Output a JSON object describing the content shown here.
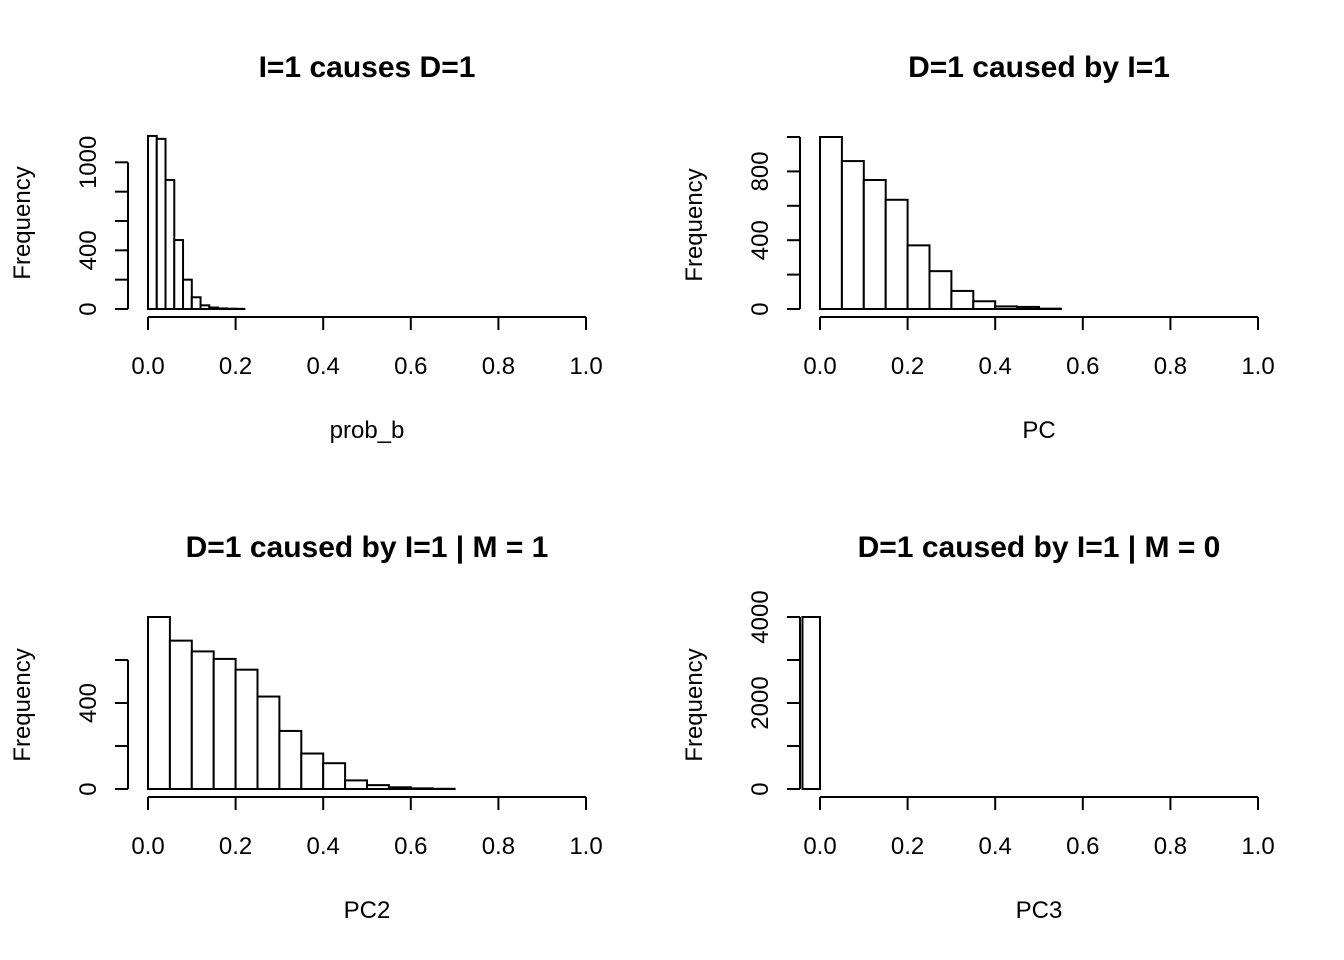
{
  "chart_data": [
    {
      "type": "bar",
      "title": "I=1 causes D=1",
      "xlabel": "prob_b",
      "ylabel": "Frequency",
      "xlim": [
        0,
        1
      ],
      "ylim": [
        0,
        1200
      ],
      "xticks": [
        "0.0",
        "0.2",
        "0.4",
        "0.6",
        "0.8",
        "1.0"
      ],
      "yticks": [
        "0",
        "400",
        "1000"
      ],
      "yminor": [
        200,
        600,
        800
      ],
      "bins": [
        {
          "x0": 0.0,
          "x1": 0.02,
          "count": 1180
        },
        {
          "x0": 0.02,
          "x1": 0.04,
          "count": 1160
        },
        {
          "x0": 0.04,
          "x1": 0.06,
          "count": 880
        },
        {
          "x0": 0.06,
          "x1": 0.08,
          "count": 470
        },
        {
          "x0": 0.08,
          "x1": 0.1,
          "count": 200
        },
        {
          "x0": 0.1,
          "x1": 0.12,
          "count": 80
        },
        {
          "x0": 0.12,
          "x1": 0.14,
          "count": 25
        },
        {
          "x0": 0.14,
          "x1": 0.16,
          "count": 10
        },
        {
          "x0": 0.16,
          "x1": 0.18,
          "count": 4
        },
        {
          "x0": 0.18,
          "x1": 0.2,
          "count": 2
        },
        {
          "x0": 0.2,
          "x1": 0.22,
          "count": 1
        }
      ]
    },
    {
      "type": "bar",
      "title": "D=1 caused by I=1",
      "xlabel": "PC",
      "ylabel": "Frequency",
      "xlim": [
        0,
        1
      ],
      "ylim": [
        0,
        1000
      ],
      "xticks": [
        "0.0",
        "0.2",
        "0.4",
        "0.6",
        "0.8",
        "1.0"
      ],
      "yticks": [
        "0",
        "400",
        "800"
      ],
      "yminor": [
        200,
        600,
        1000
      ],
      "bins": [
        {
          "x0": 0.0,
          "x1": 0.05,
          "count": 1000
        },
        {
          "x0": 0.05,
          "x1": 0.1,
          "count": 860
        },
        {
          "x0": 0.1,
          "x1": 0.15,
          "count": 750
        },
        {
          "x0": 0.15,
          "x1": 0.2,
          "count": 635
        },
        {
          "x0": 0.2,
          "x1": 0.25,
          "count": 370
        },
        {
          "x0": 0.25,
          "x1": 0.3,
          "count": 220
        },
        {
          "x0": 0.3,
          "x1": 0.35,
          "count": 105
        },
        {
          "x0": 0.35,
          "x1": 0.4,
          "count": 45
        },
        {
          "x0": 0.4,
          "x1": 0.45,
          "count": 15
        },
        {
          "x0": 0.45,
          "x1": 0.5,
          "count": 12
        },
        {
          "x0": 0.5,
          "x1": 0.55,
          "count": 2
        }
      ]
    },
    {
      "type": "bar",
      "title": "D=1 caused by I=1 | M = 1",
      "xlabel": "PC2",
      "ylabel": "Frequency",
      "xlim": [
        0,
        1
      ],
      "ylim": [
        0,
        800
      ],
      "xticks": [
        "0.0",
        "0.2",
        "0.4",
        "0.6",
        "0.8",
        "1.0"
      ],
      "yticks": [
        "0",
        "400"
      ],
      "yminor": [
        200,
        600
      ],
      "bins": [
        {
          "x0": 0.0,
          "x1": 0.05,
          "count": 800
        },
        {
          "x0": 0.05,
          "x1": 0.1,
          "count": 690
        },
        {
          "x0": 0.1,
          "x1": 0.15,
          "count": 640
        },
        {
          "x0": 0.15,
          "x1": 0.2,
          "count": 605
        },
        {
          "x0": 0.2,
          "x1": 0.25,
          "count": 555
        },
        {
          "x0": 0.25,
          "x1": 0.3,
          "count": 430
        },
        {
          "x0": 0.3,
          "x1": 0.35,
          "count": 270
        },
        {
          "x0": 0.35,
          "x1": 0.4,
          "count": 165
        },
        {
          "x0": 0.4,
          "x1": 0.45,
          "count": 120
        },
        {
          "x0": 0.45,
          "x1": 0.5,
          "count": 40
        },
        {
          "x0": 0.5,
          "x1": 0.55,
          "count": 18
        },
        {
          "x0": 0.55,
          "x1": 0.6,
          "count": 8
        },
        {
          "x0": 0.6,
          "x1": 0.65,
          "count": 3
        },
        {
          "x0": 0.65,
          "x1": 0.7,
          "count": 1
        }
      ]
    },
    {
      "type": "bar",
      "title": "D=1 caused by I=1 | M = 0",
      "xlabel": "PC3",
      "ylabel": "Frequency",
      "xlim": [
        0,
        1
      ],
      "ylim": [
        0,
        4000
      ],
      "xticks": [
        "0.0",
        "0.2",
        "0.4",
        "0.6",
        "0.8",
        "1.0"
      ],
      "yticks": [
        "0",
        "2000",
        "4000"
      ],
      "yminor": [
        1000,
        3000
      ],
      "bins": [
        {
          "x0": -0.04,
          "x1": 0.0,
          "count": 4000
        }
      ]
    }
  ]
}
